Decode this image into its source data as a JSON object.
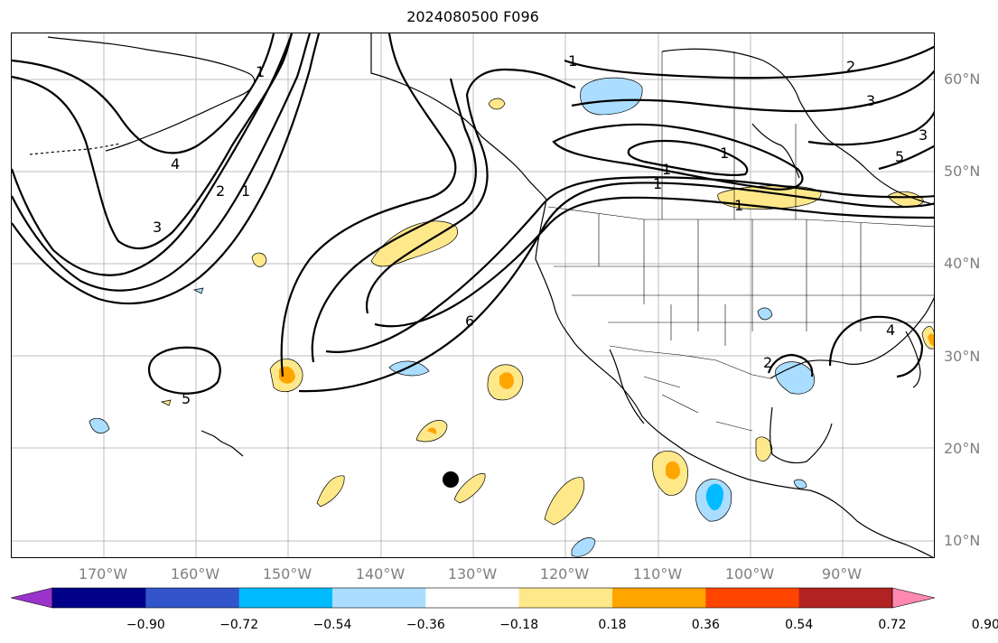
{
  "title": "2024080500 F096",
  "map": {
    "projection": "plate-carree",
    "extent": {
      "lon_min": -180,
      "lon_max": -80,
      "lat_min": 8,
      "lat_max": 65
    },
    "gridlines": true,
    "station_marker": {
      "lon": -132.8,
      "lat": 16.7,
      "label": ""
    }
  },
  "lat_ticks": [
    "10°N",
    "20°N",
    "30°N",
    "40°N",
    "50°N",
    "60°N"
  ],
  "lon_ticks": [
    "170°W",
    "160°W",
    "150°W",
    "140°W",
    "130°W",
    "120°W",
    "110°W",
    "100°W",
    "90°W"
  ],
  "contour_labels": [
    "1",
    "2",
    "3",
    "4",
    "5",
    "6",
    "1",
    "2",
    "3",
    "5",
    "1",
    "1",
    "1",
    "1",
    "2",
    "4",
    "1",
    "3"
  ],
  "colorbar": {
    "ticks": [
      "−0.90",
      "−0.72",
      "−0.54",
      "−0.36",
      "−0.18",
      "0.18",
      "0.36",
      "0.54",
      "0.72",
      "0.90"
    ],
    "under_color": "#9933cc",
    "over_color": "#ff88b0",
    "colors": [
      "#000088",
      "#3355cc",
      "#00bbff",
      "#aaddff",
      "#ffffff",
      "#ffe88a",
      "#ffa500",
      "#ff4400",
      "#b22222"
    ]
  }
}
